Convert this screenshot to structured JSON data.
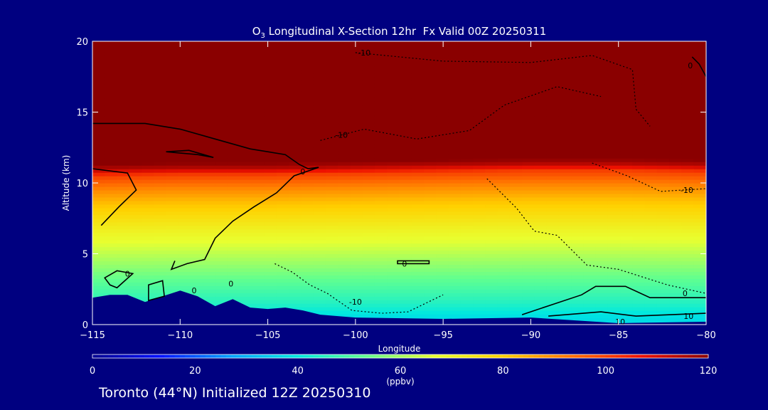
{
  "chart_data": {
    "type": "heatmap",
    "title_prefix": "O",
    "title_sub": "3",
    "title_rest": " Longitudinal X-Section 12hr  Fx Valid 00Z 20250311",
    "xlabel": "Longitude",
    "ylabel": "Altitude (km)",
    "xlim": [
      -115,
      -80
    ],
    "ylim": [
      0,
      20
    ],
    "xticks": [
      -115,
      -110,
      -105,
      -100,
      -95,
      -90,
      -85,
      -80
    ],
    "xtick_labels": [
      "−115",
      "−110",
      "−105",
      "−100",
      "−95",
      "−90",
      "−85",
      "−80"
    ],
    "yticks": [
      0,
      5,
      10,
      15,
      20
    ],
    "ytick_labels": [
      "0",
      "5",
      "10",
      "15",
      "20"
    ],
    "colorbar": {
      "min": 0,
      "max": 120,
      "ticks": [
        0,
        20,
        40,
        60,
        80,
        100,
        120
      ],
      "tick_labels": [
        "0",
        "20",
        "40",
        "60",
        "80",
        "100",
        "120"
      ],
      "unit": "(ppbv)",
      "colors": [
        "#000090",
        "#0010ff",
        "#00a0ff",
        "#00e8e0",
        "#60ff90",
        "#e8ff30",
        "#ffd000",
        "#ff7000",
        "#ee1000",
        "#8a0000"
      ]
    },
    "tropopause_height_km": [
      [
        -115,
        10.9
      ],
      [
        -110,
        11.0
      ],
      [
        -105,
        11.0
      ],
      [
        -100,
        11.1
      ],
      [
        -95,
        11.2
      ],
      [
        -90,
        11.3
      ],
      [
        -85,
        11.3
      ],
      [
        -80,
        11.2
      ]
    ],
    "ozone_profile_ppbv": [
      [
        0.5,
        38
      ],
      [
        1.5,
        45
      ],
      [
        2.5,
        50
      ],
      [
        3.5,
        55
      ],
      [
        4.5,
        60
      ],
      [
        5.5,
        65
      ],
      [
        6.5,
        70
      ],
      [
        7.5,
        76
      ],
      [
        8.5,
        82
      ],
      [
        9.5,
        90
      ],
      [
        10.5,
        100
      ],
      [
        11.0,
        115
      ],
      [
        12,
        130
      ]
    ],
    "terrain_top_km": [
      [
        -115,
        1.9
      ],
      [
        -114,
        2.1
      ],
      [
        -113,
        2.1
      ],
      [
        -112,
        1.6
      ],
      [
        -111,
        2.0
      ],
      [
        -110,
        2.4
      ],
      [
        -109,
        2.0
      ],
      [
        -108,
        1.3
      ],
      [
        -107,
        1.8
      ],
      [
        -106,
        1.2
      ],
      [
        -105,
        1.1
      ],
      [
        -104,
        1.2
      ],
      [
        -103,
        1.0
      ],
      [
        -102,
        0.7
      ],
      [
        -100,
        0.5
      ],
      [
        -95,
        0.4
      ],
      [
        -90,
        0.5
      ],
      [
        -85,
        0.1
      ],
      [
        -80,
        0.2
      ]
    ],
    "contour_labels": [
      {
        "lon": -99.5,
        "alt": 19.2,
        "text": "-10"
      },
      {
        "lon": -100.8,
        "alt": 13.4,
        "text": "-10"
      },
      {
        "lon": -103.0,
        "alt": 10.8,
        "text": "0"
      },
      {
        "lon": -80.9,
        "alt": 18.3,
        "text": "0"
      },
      {
        "lon": -81.1,
        "alt": 9.5,
        "text": "-10"
      },
      {
        "lon": -97.2,
        "alt": 4.3,
        "text": "0"
      },
      {
        "lon": -113.0,
        "alt": 3.6,
        "text": "0"
      },
      {
        "lon": -109.2,
        "alt": 2.4,
        "text": "0"
      },
      {
        "lon": -107.1,
        "alt": 2.9,
        "text": "0"
      },
      {
        "lon": -100.0,
        "alt": 1.6,
        "text": "-10"
      },
      {
        "lon": -81.2,
        "alt": 2.2,
        "text": "0"
      },
      {
        "lon": -81.0,
        "alt": 0.6,
        "text": "10"
      },
      {
        "lon": -84.9,
        "alt": 0.2,
        "text": "10"
      }
    ]
  },
  "footer": {
    "location_text": "Toronto (44°N) Initialized 12Z 20250310"
  },
  "colors": {
    "background": "#000080",
    "frame": "#ffffff",
    "contour": "#000000",
    "terrain": "#000080"
  }
}
